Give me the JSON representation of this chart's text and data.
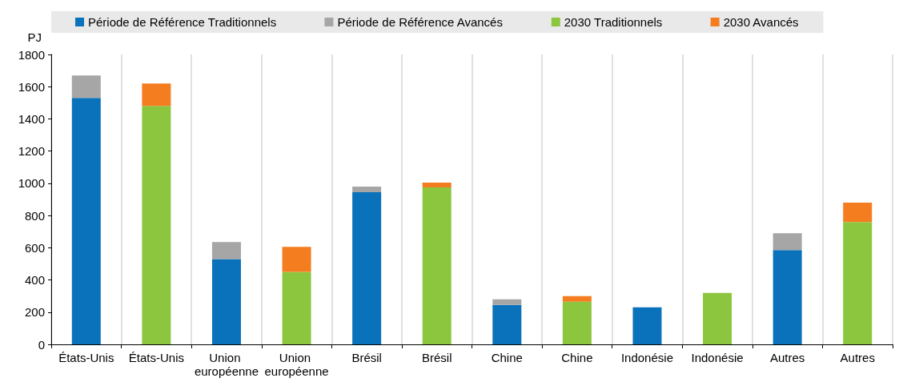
{
  "chart_data": {
    "type": "bar",
    "stacked": true,
    "ylabel": "PJ",
    "categories": [
      "États-Unis",
      "États-Unis",
      "Union européenne",
      "Union européenne",
      "Brésil",
      "Brésil",
      "Chine",
      "Chine",
      "Indonésie",
      "Indonésie",
      "Autres",
      "Autres"
    ],
    "series": [
      {
        "name": "Période de Référence Traditionnels",
        "color": "#0a72ba",
        "values": [
          1530,
          null,
          530,
          null,
          945,
          null,
          245,
          null,
          230,
          null,
          585,
          null
        ]
      },
      {
        "name": "Période de Référence Avancés",
        "color": "#a6a6a6",
        "values": [
          140,
          null,
          105,
          null,
          35,
          null,
          35,
          null,
          0,
          null,
          105,
          null
        ]
      },
      {
        "name": "2030 Traditionnels",
        "color": "#8cc63f",
        "values": [
          null,
          1480,
          null,
          450,
          null,
          975,
          null,
          265,
          null,
          320,
          null,
          760
        ]
      },
      {
        "name": "2030 Avancés",
        "color": "#f47d20",
        "values": [
          null,
          140,
          null,
          155,
          null,
          30,
          null,
          35,
          null,
          0,
          null,
          120
        ]
      }
    ],
    "ylim": [
      0,
      1800
    ],
    "yticks": [
      0,
      200,
      400,
      600,
      800,
      1000,
      1200,
      1400,
      1600,
      1800
    ],
    "grid": "x",
    "legend": "top"
  }
}
